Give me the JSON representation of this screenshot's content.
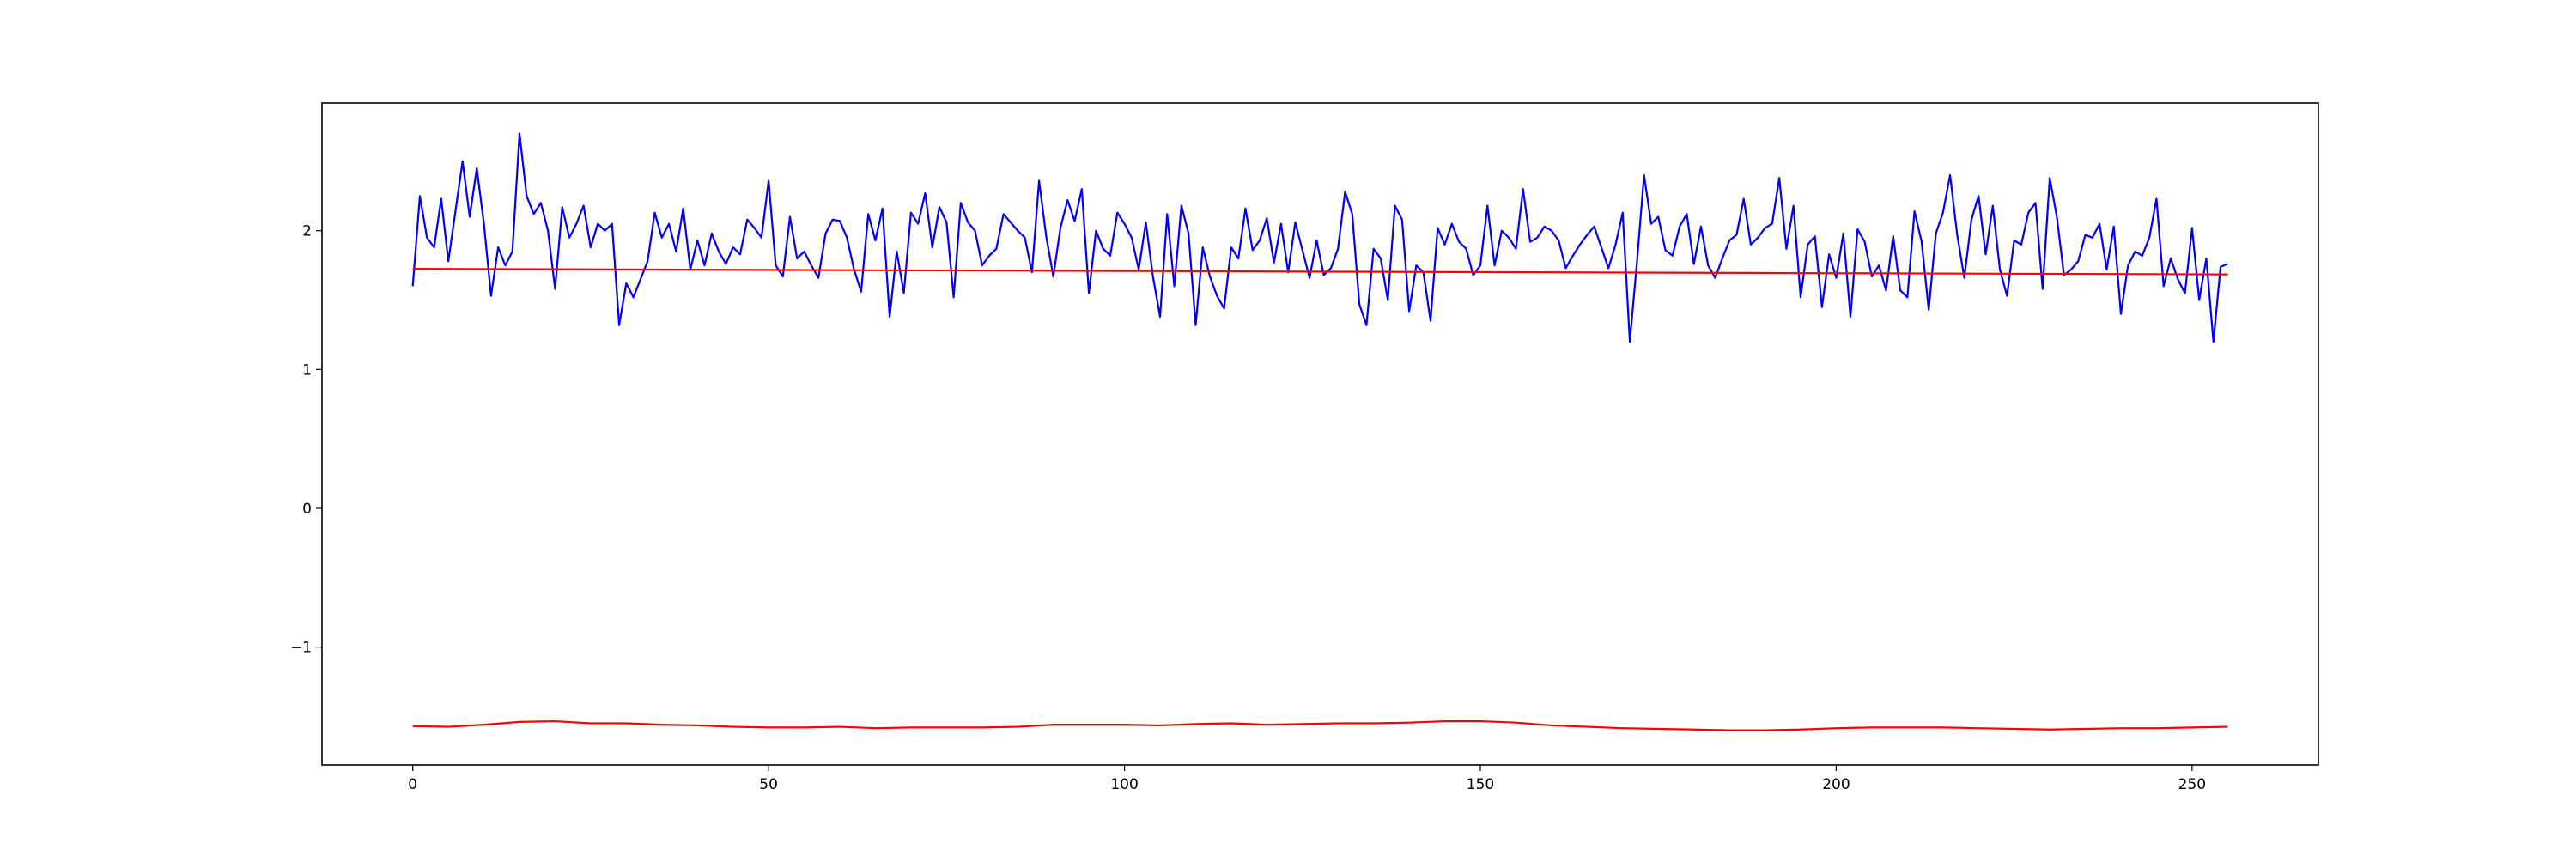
{
  "chart_data": {
    "type": "line",
    "title": "",
    "xlabel": "",
    "ylabel": "",
    "xlim": [
      -12.75,
      267.75
    ],
    "ylim": [
      -1.85,
      2.92
    ],
    "grid": false,
    "legend": "none",
    "x_ticks": [
      0,
      50,
      100,
      150,
      200,
      250
    ],
    "y_ticks": [
      -1,
      0,
      1,
      2
    ],
    "series": [
      {
        "color": "#0000ff",
        "x_start": 0,
        "x_step": 1,
        "values": [
          1.6,
          2.25,
          1.95,
          1.88,
          2.23,
          1.78,
          2.14,
          2.5,
          2.1,
          2.45,
          2.05,
          1.53,
          1.88,
          1.75,
          1.85,
          2.7,
          2.25,
          2.12,
          2.2,
          2.0,
          1.58,
          2.17,
          1.95,
          2.05,
          2.18,
          1.88,
          2.05,
          2.0,
          2.05,
          1.32,
          1.62,
          1.52,
          1.65,
          1.78,
          2.13,
          1.95,
          2.05,
          1.85,
          2.16,
          1.72,
          1.93,
          1.75,
          1.98,
          1.85,
          1.76,
          1.88,
          1.83,
          2.08,
          2.02,
          1.95,
          2.36,
          1.75,
          1.67,
          2.1,
          1.8,
          1.85,
          1.75,
          1.66,
          1.98,
          2.08,
          2.07,
          1.95,
          1.72,
          1.56,
          2.12,
          1.93,
          2.16,
          1.38,
          1.85,
          1.55,
          2.13,
          2.05,
          2.27,
          1.88,
          2.17,
          2.06,
          1.52,
          2.2,
          2.06,
          2.0,
          1.75,
          1.82,
          1.87,
          2.12,
          2.06,
          2.0,
          1.95,
          1.7,
          2.36,
          1.96,
          1.67,
          2.02,
          2.22,
          2.07,
          2.3,
          1.55,
          2.0,
          1.87,
          1.82,
          2.13,
          2.05,
          1.95,
          1.72,
          2.06,
          1.67,
          1.38,
          2.12,
          1.6,
          2.18,
          1.98,
          1.32,
          1.88,
          1.67,
          1.53,
          1.44,
          1.88,
          1.8,
          2.16,
          1.86,
          1.93,
          2.09,
          1.77,
          2.05,
          1.7,
          2.06,
          1.86,
          1.66,
          1.93,
          1.68,
          1.73,
          1.87,
          2.28,
          2.12,
          1.47,
          1.32,
          1.87,
          1.8,
          1.5,
          2.18,
          2.08,
          1.42,
          1.75,
          1.7,
          1.35,
          2.02,
          1.9,
          2.05,
          1.92,
          1.87,
          1.68,
          1.75,
          2.18,
          1.75,
          2.0,
          1.95,
          1.87,
          2.3,
          1.92,
          1.95,
          2.03,
          2.0,
          1.93,
          1.73,
          1.82,
          1.9,
          1.97,
          2.03,
          1.88,
          1.73,
          1.9,
          2.13,
          1.2,
          1.77,
          2.4,
          2.05,
          2.1,
          1.86,
          1.82,
          2.03,
          2.12,
          1.76,
          2.03,
          1.75,
          1.66,
          1.8,
          1.93,
          1.97,
          2.23,
          1.9,
          1.95,
          2.02,
          2.05,
          2.38,
          1.87,
          2.18,
          1.52,
          1.9,
          1.96,
          1.45,
          1.83,
          1.66,
          1.98,
          1.38,
          2.01,
          1.92,
          1.67,
          1.75,
          1.57,
          1.96,
          1.57,
          1.52,
          2.14,
          1.92,
          1.43,
          1.98,
          2.13,
          2.4,
          1.97,
          1.66,
          2.08,
          2.25,
          1.83,
          2.18,
          1.72,
          1.53,
          1.93,
          1.9,
          2.13,
          2.2,
          1.58,
          2.38,
          2.1,
          1.68,
          1.72,
          1.78,
          1.97,
          1.95,
          2.05,
          1.72,
          2.03,
          1.4,
          1.75,
          1.85,
          1.82,
          1.95,
          2.23,
          1.6,
          1.8,
          1.65,
          1.55,
          2.02,
          1.5,
          1.8,
          1.2,
          1.74,
          1.76
        ]
      },
      {
        "color": "#ff0000",
        "x": [
          0,
          255
        ],
        "values": [
          1.725,
          1.685
        ]
      },
      {
        "color": "#ff0000",
        "x": [
          0,
          5,
          10,
          15,
          20,
          25,
          30,
          35,
          40,
          45,
          50,
          55,
          60,
          65,
          70,
          75,
          80,
          85,
          90,
          95,
          100,
          105,
          110,
          115,
          120,
          125,
          130,
          135,
          140,
          145,
          150,
          155,
          160,
          165,
          170,
          175,
          180,
          185,
          190,
          195,
          200,
          205,
          210,
          215,
          220,
          225,
          230,
          235,
          240,
          245,
          250,
          255
        ],
        "values": [
          -1.57,
          -1.575,
          -1.56,
          -1.54,
          -1.535,
          -1.55,
          -1.55,
          -1.56,
          -1.565,
          -1.575,
          -1.58,
          -1.58,
          -1.575,
          -1.585,
          -1.58,
          -1.58,
          -1.58,
          -1.575,
          -1.56,
          -1.56,
          -1.56,
          -1.565,
          -1.555,
          -1.55,
          -1.56,
          -1.555,
          -1.55,
          -1.55,
          -1.545,
          -1.535,
          -1.535,
          -1.545,
          -1.565,
          -1.575,
          -1.585,
          -1.59,
          -1.595,
          -1.6,
          -1.6,
          -1.595,
          -1.585,
          -1.58,
          -1.58,
          -1.58,
          -1.585,
          -1.59,
          -1.595,
          -1.59,
          -1.585,
          -1.585,
          -1.58,
          -1.575
        ]
      }
    ]
  }
}
